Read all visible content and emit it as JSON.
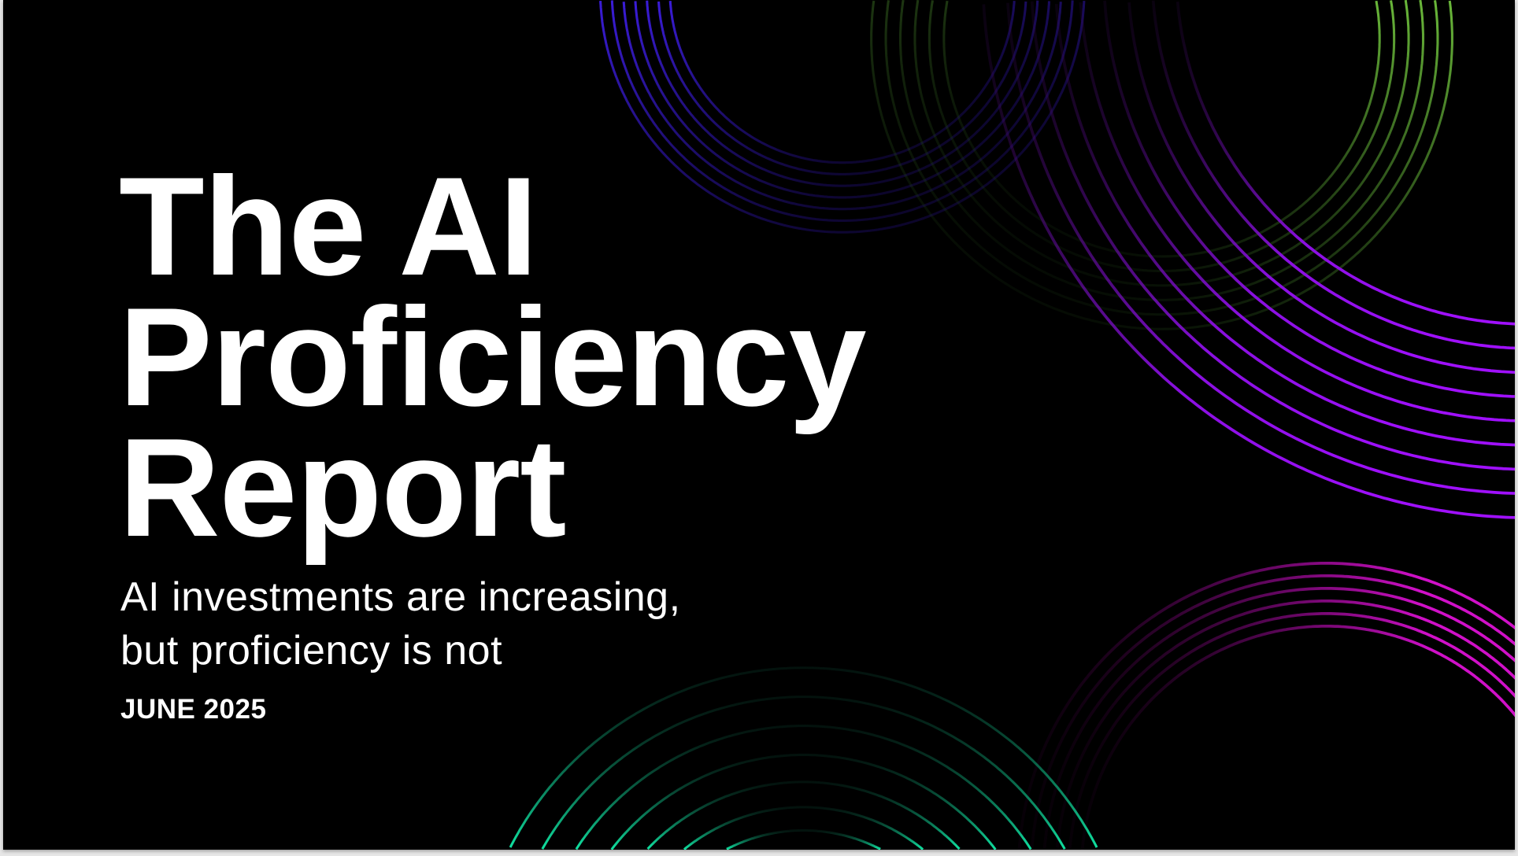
{
  "title_lines": [
    "The AI",
    "Proficiency",
    "Report"
  ],
  "subtitle_lines": [
    "AI investments are increasing,",
    "but proficiency is not"
  ],
  "date": "JUNE 2025",
  "colors": {
    "background": "#000000",
    "text": "#ffffff",
    "blue_arcs": "#3a1cd8",
    "purple_arcs": "#9b10f0",
    "green_arcs_top": "#5aa83a",
    "magenta_arcs": "#d010c8",
    "teal_arcs": "#10e0a0"
  }
}
